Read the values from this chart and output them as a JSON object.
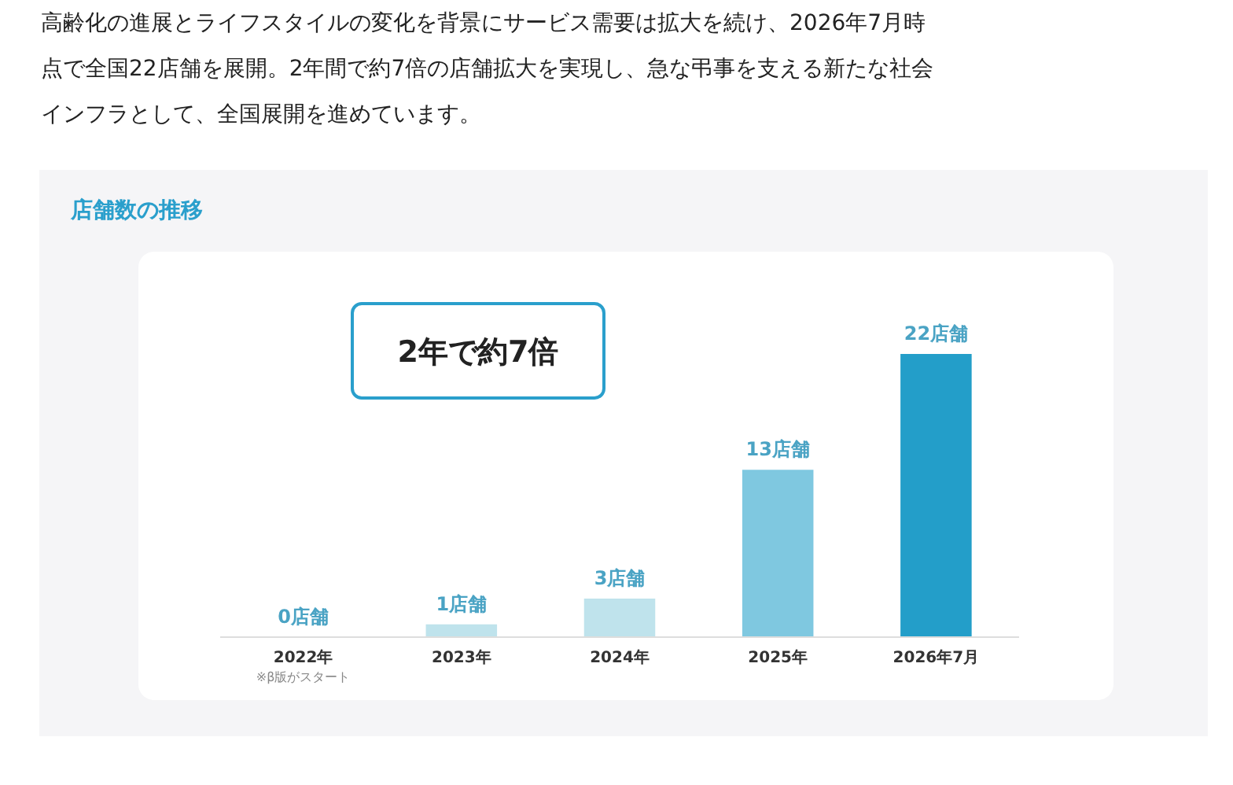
{
  "chart_data": {
    "type": "bar",
    "title": "店舗数の推移",
    "categories": [
      "2022年",
      "2023年",
      "2024年",
      "2025年",
      "2026年7月"
    ],
    "values": [
      0,
      1,
      3,
      13,
      22
    ],
    "colors": [
      "#bfe3ec",
      "#bfe3ec",
      "#bfe3ec",
      "#7fc8e0",
      "#239ec9"
    ],
    "value_labels": [
      "0店舗",
      "1店舗",
      "3店舗",
      "13店舗",
      "22店舗"
    ],
    "annotations": [
      "高齢化の進展とライフスタイルの変化を背景にサービス需要は拡大を続け、2026年7月時点で全国22店舗を展開。2年間で約7倍の店舗拡大を実現し、急な弔事を支える新たな社会インフラとして、全国展開を進めています。",
      "2年で約7倍",
      "※β版がスタート"
    ]
  }
}
